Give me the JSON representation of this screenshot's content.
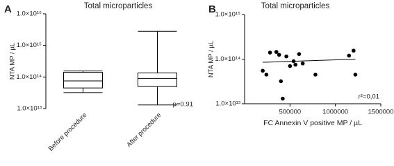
{
  "chart_data": [
    {
      "type": "box",
      "panel": "A",
      "title": "Total microparticles",
      "y_label": "NTA MP / µL",
      "log_y": true,
      "categories": [
        "Before procedure",
        "After procedure"
      ],
      "boxes": [
        {
          "min": 32000000000000.0,
          "q1": 45000000000000.0,
          "median": 75000000000000.0,
          "q3": 140000000000000.0,
          "max": 155000000000000.0
        },
        {
          "min": 13000000000000.0,
          "q1": 50000000000000.0,
          "median": 90000000000000.0,
          "q3": 135000000000000.0,
          "max": 2800000000000000.0
        }
      ],
      "color": "#000000",
      "ylim": [
        10000000000000.0,
        1e+16
      ],
      "yticks": [
        {
          "value": 10000000000000.0,
          "label": "1.0×10¹³"
        },
        {
          "value": 100000000000000.0,
          "label": "1.0×10¹⁴"
        },
        {
          "value": 1000000000000000.0,
          "label": "1.0×10¹⁵"
        },
        {
          "value": 1e+16,
          "label": "1.0×10¹⁶"
        }
      ],
      "annotation": "p=0.91"
    },
    {
      "type": "scatter",
      "panel": "B",
      "title": "Total microparticles",
      "y_label": "NTA MP / µL",
      "x_label": "FC Annexin V positive MP / µL",
      "log_y": true,
      "x": [
        200000,
        240000,
        280000,
        350000,
        380000,
        400000,
        420000,
        460000,
        500000,
        540000,
        560000,
        600000,
        640000,
        780000,
        1150000,
        1200000,
        1220000
      ],
      "values": [
        55000000000000.0,
        45000000000000.0,
        140000000000000.0,
        145000000000000.0,
        125000000000000.0,
        32000000000000.0,
        13000000000000.0,
        115000000000000.0,
        70000000000000.0,
        90000000000000.0,
        75000000000000.0,
        130000000000000.0,
        80000000000000.0,
        45000000000000.0,
        120000000000000.0,
        155000000000000.0,
        45000000000000.0
      ],
      "color": "#000000",
      "fit_x": [
        200000,
        1220000
      ],
      "fit_values": [
        85000000000000.0,
        100000000000000.0
      ],
      "xlim": [
        0,
        1500000
      ],
      "xticks": [
        500000,
        1000000,
        1500000
      ],
      "ylim": [
        10000000000000.0,
        1000000000000000.0
      ],
      "yticks": [
        {
          "value": 10000000000000.0,
          "label": "1.0×10¹³"
        },
        {
          "value": 100000000000000.0,
          "label": "1.0×10¹⁴"
        },
        {
          "value": 1000000000000000.0,
          "label": "1.0×10¹⁵"
        }
      ],
      "annotation": "r²=0,01"
    }
  ]
}
